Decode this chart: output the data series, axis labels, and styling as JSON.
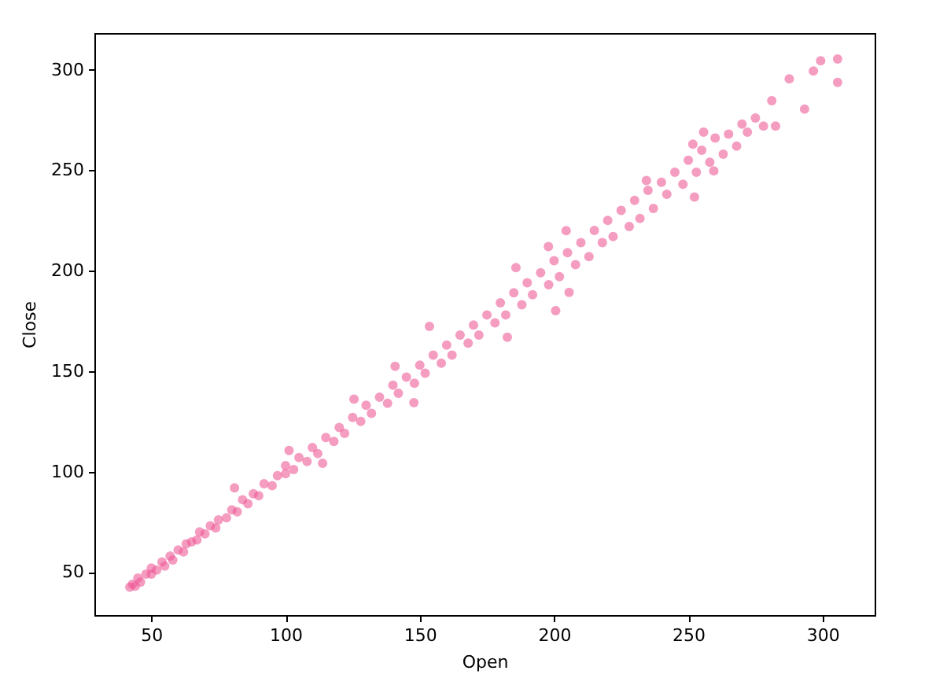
{
  "chart_data": {
    "type": "scatter",
    "xlabel": "Open",
    "ylabel": "Close",
    "color": "#ee5a97",
    "marker": "circle",
    "xlim": [
      28.8,
      319.4
    ],
    "ylim": [
      28.6,
      318.3
    ],
    "xticks": [
      50,
      100,
      150,
      200,
      250,
      300
    ],
    "yticks": [
      50,
      100,
      150,
      200,
      250,
      300
    ],
    "x": [
      42,
      43,
      44,
      45,
      46,
      48,
      50,
      50,
      52,
      54,
      55,
      57,
      58,
      60,
      62,
      63,
      65,
      67,
      68,
      70,
      72,
      74,
      75,
      78,
      80,
      82,
      84,
      86,
      88,
      90,
      92,
      95,
      97,
      100,
      100,
      103,
      105,
      108,
      110,
      112,
      115,
      118,
      120,
      122,
      125,
      128,
      130,
      132,
      135,
      138,
      140,
      142,
      145,
      148,
      150,
      152,
      155,
      158,
      160,
      162,
      165,
      168,
      170,
      172,
      175,
      178,
      180,
      182,
      185,
      188,
      190,
      192,
      195,
      198,
      200,
      202,
      205,
      208,
      210,
      213,
      215,
      218,
      220,
      222,
      225,
      228,
      230,
      232,
      235,
      237,
      240,
      242,
      245,
      248,
      250,
      253,
      255,
      258,
      260,
      263,
      265,
      268,
      270,
      272,
      275,
      278,
      305.6,
      305.6,
      299.3,
      296.6,
      293.3,
      287.6,
      282.5,
      281.1,
      255.7,
      252.3,
      251.7,
      259.5,
      234.4,
      204.5,
      200.6,
      205.6,
      197.9,
      185.8,
      182.6,
      153.6,
      147.8,
      140.8,
      125.5,
      101.3,
      81,
      113.8
    ],
    "values": [
      42.5,
      44,
      43,
      47,
      45,
      49,
      49,
      52,
      51,
      55,
      53,
      58,
      56,
      61,
      60,
      64,
      65,
      66,
      70,
      69,
      73,
      72,
      76,
      77,
      81,
      80,
      86,
      84,
      89,
      88,
      94,
      93,
      98,
      99,
      103,
      101,
      107,
      105,
      112,
      109,
      117,
      115,
      122,
      119,
      127,
      125,
      133,
      129,
      137,
      134,
      143,
      139,
      147,
      144,
      153,
      149,
      158,
      154,
      163,
      158,
      168,
      164,
      173,
      168,
      178,
      174,
      184,
      178,
      189,
      183,
      194,
      188,
      199,
      193,
      205,
      197,
      209,
      203,
      214,
      207,
      220,
      214,
      225,
      217,
      230,
      222,
      235,
      226,
      240,
      231,
      244,
      238,
      249,
      243,
      255,
      249,
      260,
      254,
      266,
      258,
      268,
      262,
      273,
      269,
      276,
      272,
      305.4,
      293.7,
      304.5,
      299.4,
      280.4,
      295.5,
      272,
      284.6,
      269,
      236.7,
      263,
      249.7,
      244.9,
      219.9,
      180.1,
      189.2,
      212,
      201.5,
      166.9,
      172.3,
      134.3,
      152.4,
      136.1,
      110.5,
      91.9,
      104.2
    ]
  }
}
